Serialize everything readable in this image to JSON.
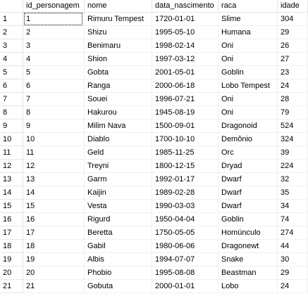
{
  "columns": {
    "id_personagem": "id_personagem",
    "nome": "nome",
    "data_nascimento": "data_nascimento",
    "raca": "raca",
    "idade": "idade"
  },
  "rows": [
    {
      "rownum": "1",
      "id_personagem": "1",
      "nome": "Rimuru Tempest",
      "data_nascimento": "1720-01-01",
      "raca": "Slime",
      "idade": "304"
    },
    {
      "rownum": "2",
      "id_personagem": "2",
      "nome": "Shizu",
      "data_nascimento": "1995-05-10",
      "raca": "Humana",
      "idade": "29"
    },
    {
      "rownum": "3",
      "id_personagem": "3",
      "nome": "Benimaru",
      "data_nascimento": "1998-02-14",
      "raca": "Oni",
      "idade": "26"
    },
    {
      "rownum": "4",
      "id_personagem": "4",
      "nome": "Shion",
      "data_nascimento": "1997-03-12",
      "raca": "Oni",
      "idade": "27"
    },
    {
      "rownum": "5",
      "id_personagem": "5",
      "nome": "Gobta",
      "data_nascimento": "2001-05-01",
      "raca": "Goblin",
      "idade": "23"
    },
    {
      "rownum": "6",
      "id_personagem": "6",
      "nome": "Ranga",
      "data_nascimento": "2000-06-18",
      "raca": "Lobo Tempest",
      "idade": "24"
    },
    {
      "rownum": "7",
      "id_personagem": "7",
      "nome": "Souei",
      "data_nascimento": "1996-07-21",
      "raca": "Oni",
      "idade": "28"
    },
    {
      "rownum": "8",
      "id_personagem": "8",
      "nome": "Hakurou",
      "data_nascimento": "1945-08-19",
      "raca": "Oni",
      "idade": "79"
    },
    {
      "rownum": "9",
      "id_personagem": "9",
      "nome": "Milim Nava",
      "data_nascimento": "1500-09-01",
      "raca": "Dragonoid",
      "idade": "524"
    },
    {
      "rownum": "10",
      "id_personagem": "10",
      "nome": "Diablo",
      "data_nascimento": "1700-10-10",
      "raca": "Demônio",
      "idade": "324"
    },
    {
      "rownum": "11",
      "id_personagem": "11",
      "nome": "Geld",
      "data_nascimento": "1985-11-25",
      "raca": "Orc",
      "idade": "39"
    },
    {
      "rownum": "12",
      "id_personagem": "12",
      "nome": "Treyni",
      "data_nascimento": "1800-12-15",
      "raca": "Dryad",
      "idade": "224"
    },
    {
      "rownum": "13",
      "id_personagem": "13",
      "nome": "Garm",
      "data_nascimento": "1992-01-17",
      "raca": "Dwarf",
      "idade": "32"
    },
    {
      "rownum": "14",
      "id_personagem": "14",
      "nome": "Kaijin",
      "data_nascimento": "1989-02-28",
      "raca": "Dwarf",
      "idade": "35"
    },
    {
      "rownum": "15",
      "id_personagem": "15",
      "nome": "Vesta",
      "data_nascimento": "1990-03-03",
      "raca": "Dwarf",
      "idade": "34"
    },
    {
      "rownum": "16",
      "id_personagem": "16",
      "nome": "Rigurd",
      "data_nascimento": "1950-04-04",
      "raca": "Goblin",
      "idade": "74"
    },
    {
      "rownum": "17",
      "id_personagem": "17",
      "nome": "Beretta",
      "data_nascimento": "1750-05-05",
      "raca": "Homúnculo",
      "idade": "274"
    },
    {
      "rownum": "18",
      "id_personagem": "18",
      "nome": "Gabil",
      "data_nascimento": "1980-06-06",
      "raca": "Dragonewt",
      "idade": "44"
    },
    {
      "rownum": "19",
      "id_personagem": "19",
      "nome": "Albis",
      "data_nascimento": "1994-07-07",
      "raca": "Snake",
      "idade": "30"
    },
    {
      "rownum": "20",
      "id_personagem": "20",
      "nome": "Phobio",
      "data_nascimento": "1995-08-08",
      "raca": "Beastman",
      "idade": "29"
    },
    {
      "rownum": "21",
      "id_personagem": "21",
      "nome": "Gobuta",
      "data_nascimento": "2000-01-01",
      "raca": "Lobo",
      "idade": "24"
    }
  ]
}
